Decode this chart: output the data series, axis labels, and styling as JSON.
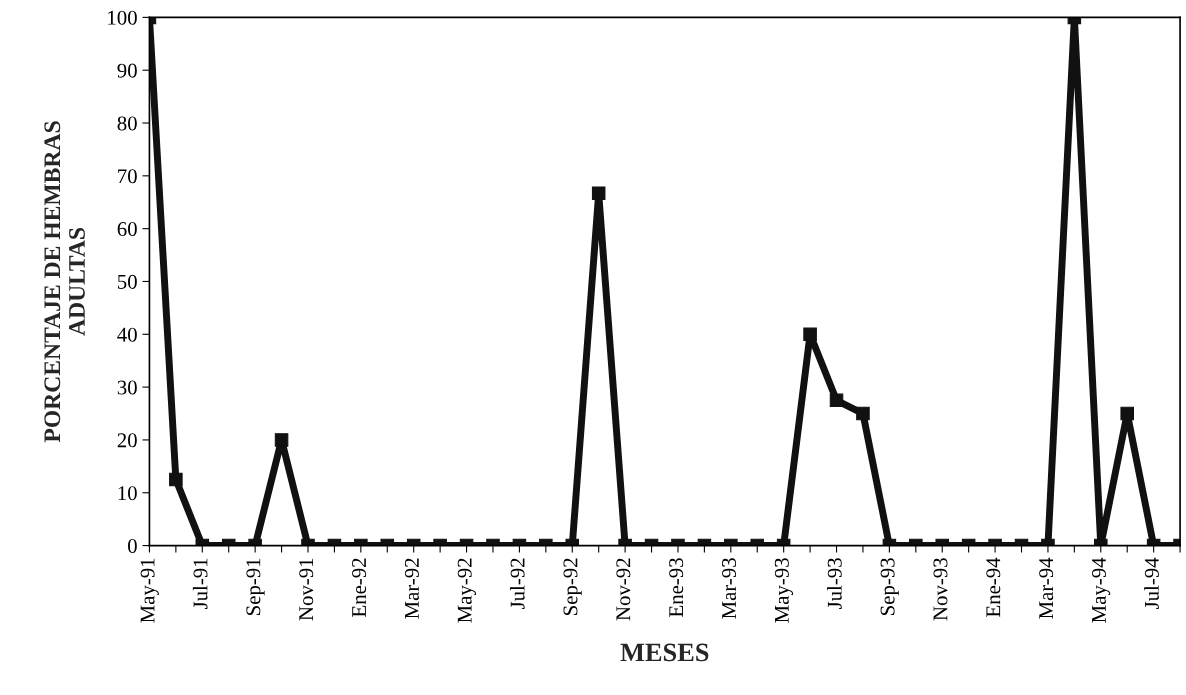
{
  "chart_data": {
    "type": "line",
    "xlabel": "MESES",
    "ylabel": "PORCENTAJE DE HEMBRAS\nADULTAS",
    "categories": [
      "May-91",
      null,
      "Jul-91",
      null,
      "Sep-91",
      null,
      "Nov-91",
      null,
      "Ene-92",
      null,
      "Mar-92",
      null,
      "May-92",
      null,
      "Jul-92",
      null,
      "Sep-92",
      null,
      "Nov-92",
      null,
      "Ene-93",
      null,
      "Mar-93",
      null,
      "May-93",
      null,
      "Jul-93",
      null,
      "Sep-93",
      null,
      "Nov-93",
      null,
      "Ene-94",
      null,
      "Mar-94",
      null,
      "May-94",
      null,
      "Jul-94",
      null
    ],
    "series": [
      {
        "color": "#111111",
        "values": [
          100,
          12.5,
          0,
          0,
          0,
          20,
          0,
          0,
          0,
          0,
          0,
          0,
          0,
          0,
          0,
          0,
          0,
          66.7,
          0,
          0,
          0,
          0,
          0,
          0,
          0,
          40,
          27.5,
          25,
          0,
          0,
          0,
          0,
          0,
          0,
          0,
          100,
          0,
          25,
          0,
          0
        ]
      }
    ],
    "ylim": [
      0,
      100
    ],
    "yticks": [
      0,
      10,
      20,
      30,
      40,
      50,
      60,
      70,
      80,
      90,
      100
    ],
    "grid": false,
    "legend": false,
    "marker": "square",
    "line_style": "solid"
  }
}
